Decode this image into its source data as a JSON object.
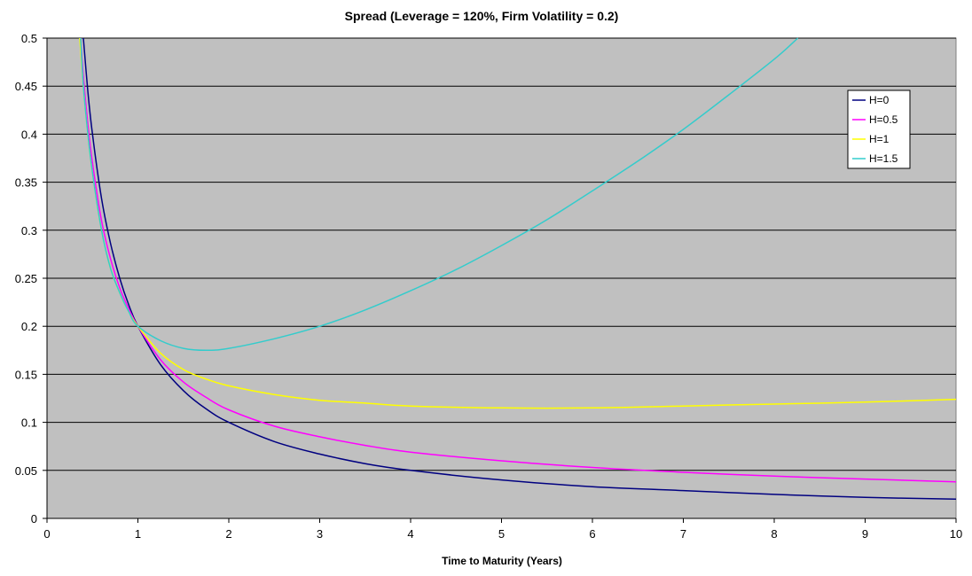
{
  "chart_data": {
    "type": "line",
    "title": "Spread (Leverage = 120%, Firm Volatility = 0.2)",
    "xlabel": "Time to Maturity (Years)",
    "ylabel": "",
    "xlim": [
      0,
      10
    ],
    "ylim": [
      0,
      0.5
    ],
    "x_ticks": [
      "0",
      "1",
      "2",
      "3",
      "4",
      "5",
      "6",
      "7",
      "8",
      "9",
      "10"
    ],
    "y_ticks": [
      "0",
      "0.05",
      "0.1",
      "0.15",
      "0.2",
      "0.25",
      "0.3",
      "0.35",
      "0.4",
      "0.45",
      "0.5"
    ],
    "grid": "horizontal",
    "plot_background": "#C0C0C0",
    "legend_position": "right",
    "series": [
      {
        "name": "H=0",
        "color": "#000080",
        "x": [
          0.4,
          0.45,
          0.5,
          0.6,
          0.7,
          0.8,
          0.9,
          1.0,
          1.25,
          1.5,
          1.75,
          2.0,
          2.5,
          3.0,
          3.5,
          4.0,
          5.0,
          6.0,
          7.0,
          8.0,
          9.0,
          10.0
        ],
        "y": [
          0.5,
          0.444,
          0.4,
          0.333,
          0.286,
          0.25,
          0.222,
          0.2,
          0.16,
          0.133,
          0.114,
          0.1,
          0.08,
          0.067,
          0.057,
          0.05,
          0.04,
          0.033,
          0.029,
          0.025,
          0.022,
          0.02
        ]
      },
      {
        "name": "H=0.5",
        "color": "#FF00FF",
        "x": [
          0.37,
          0.4,
          0.45,
          0.5,
          0.6,
          0.7,
          0.8,
          0.9,
          1.0,
          1.25,
          1.5,
          1.75,
          2.0,
          2.5,
          3.0,
          3.5,
          4.0,
          5.0,
          6.0,
          7.0,
          8.0,
          9.0,
          10.0
        ],
        "y": [
          0.5,
          0.46,
          0.41,
          0.37,
          0.31,
          0.27,
          0.24,
          0.218,
          0.2,
          0.165,
          0.142,
          0.126,
          0.113,
          0.096,
          0.085,
          0.076,
          0.069,
          0.06,
          0.053,
          0.048,
          0.044,
          0.041,
          0.038
        ]
      },
      {
        "name": "H=1",
        "color": "#FFFF00",
        "x": [
          0.36,
          0.4,
          0.45,
          0.5,
          0.6,
          0.7,
          0.8,
          0.9,
          1.0,
          1.25,
          1.5,
          1.75,
          2.0,
          2.5,
          3.0,
          3.5,
          4.0,
          5.0,
          6.0,
          7.0,
          8.0,
          9.0,
          10.0
        ],
        "y": [
          0.5,
          0.45,
          0.4,
          0.36,
          0.3,
          0.26,
          0.235,
          0.215,
          0.2,
          0.172,
          0.155,
          0.145,
          0.138,
          0.129,
          0.123,
          0.12,
          0.117,
          0.115,
          0.115,
          0.117,
          0.119,
          0.121,
          0.124
        ]
      },
      {
        "name": "H=1.5",
        "color": "#33CCCC",
        "x": [
          0.37,
          0.4,
          0.45,
          0.5,
          0.6,
          0.7,
          0.8,
          0.9,
          1.0,
          1.25,
          1.5,
          1.75,
          2.0,
          2.5,
          3.0,
          3.5,
          4.0,
          4.5,
          5.0,
          5.5,
          6.0,
          6.5,
          7.0,
          7.5,
          8.0,
          8.26
        ],
        "y": [
          0.5,
          0.45,
          0.4,
          0.36,
          0.3,
          0.26,
          0.235,
          0.215,
          0.2,
          0.185,
          0.177,
          0.175,
          0.177,
          0.187,
          0.2,
          0.217,
          0.237,
          0.259,
          0.284,
          0.311,
          0.341,
          0.372,
          0.405,
          0.441,
          0.478,
          0.5
        ]
      }
    ]
  }
}
